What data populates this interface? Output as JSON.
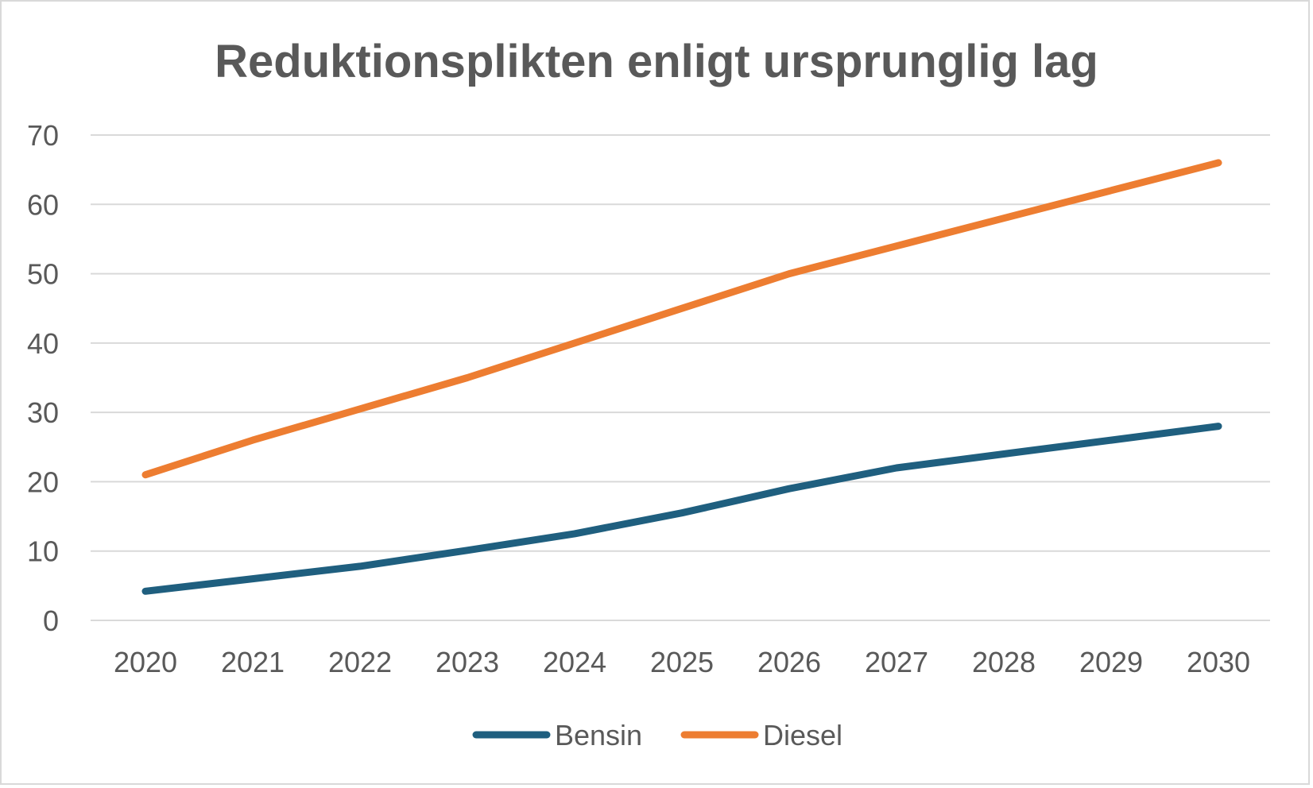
{
  "chart_data": {
    "type": "line",
    "title": "Reduktionsplikten enligt ursprunglig lag",
    "categories": [
      "2020",
      "2021",
      "2022",
      "2023",
      "2024",
      "2025",
      "2026",
      "2027",
      "2028",
      "2029",
      "2030"
    ],
    "series": [
      {
        "name": "Bensin",
        "color": "#1f5f7f",
        "values": [
          4.2,
          6.0,
          7.8,
          10.1,
          12.5,
          15.5,
          19.0,
          22.0,
          24.0,
          26.0,
          28.0
        ]
      },
      {
        "name": "Diesel",
        "color": "#ed7d31",
        "values": [
          21.0,
          26.0,
          30.5,
          35.0,
          40.0,
          45.0,
          50.0,
          54.0,
          58.0,
          62.0,
          66.0
        ]
      }
    ],
    "y_ticks": [
      "0",
      "10",
      "20",
      "30",
      "40",
      "50",
      "60",
      "70"
    ],
    "ylim": [
      0,
      70
    ],
    "grid": true,
    "legend_position": "bottom",
    "gridline_color": "#d9d9d9",
    "text_color": "#595959"
  }
}
